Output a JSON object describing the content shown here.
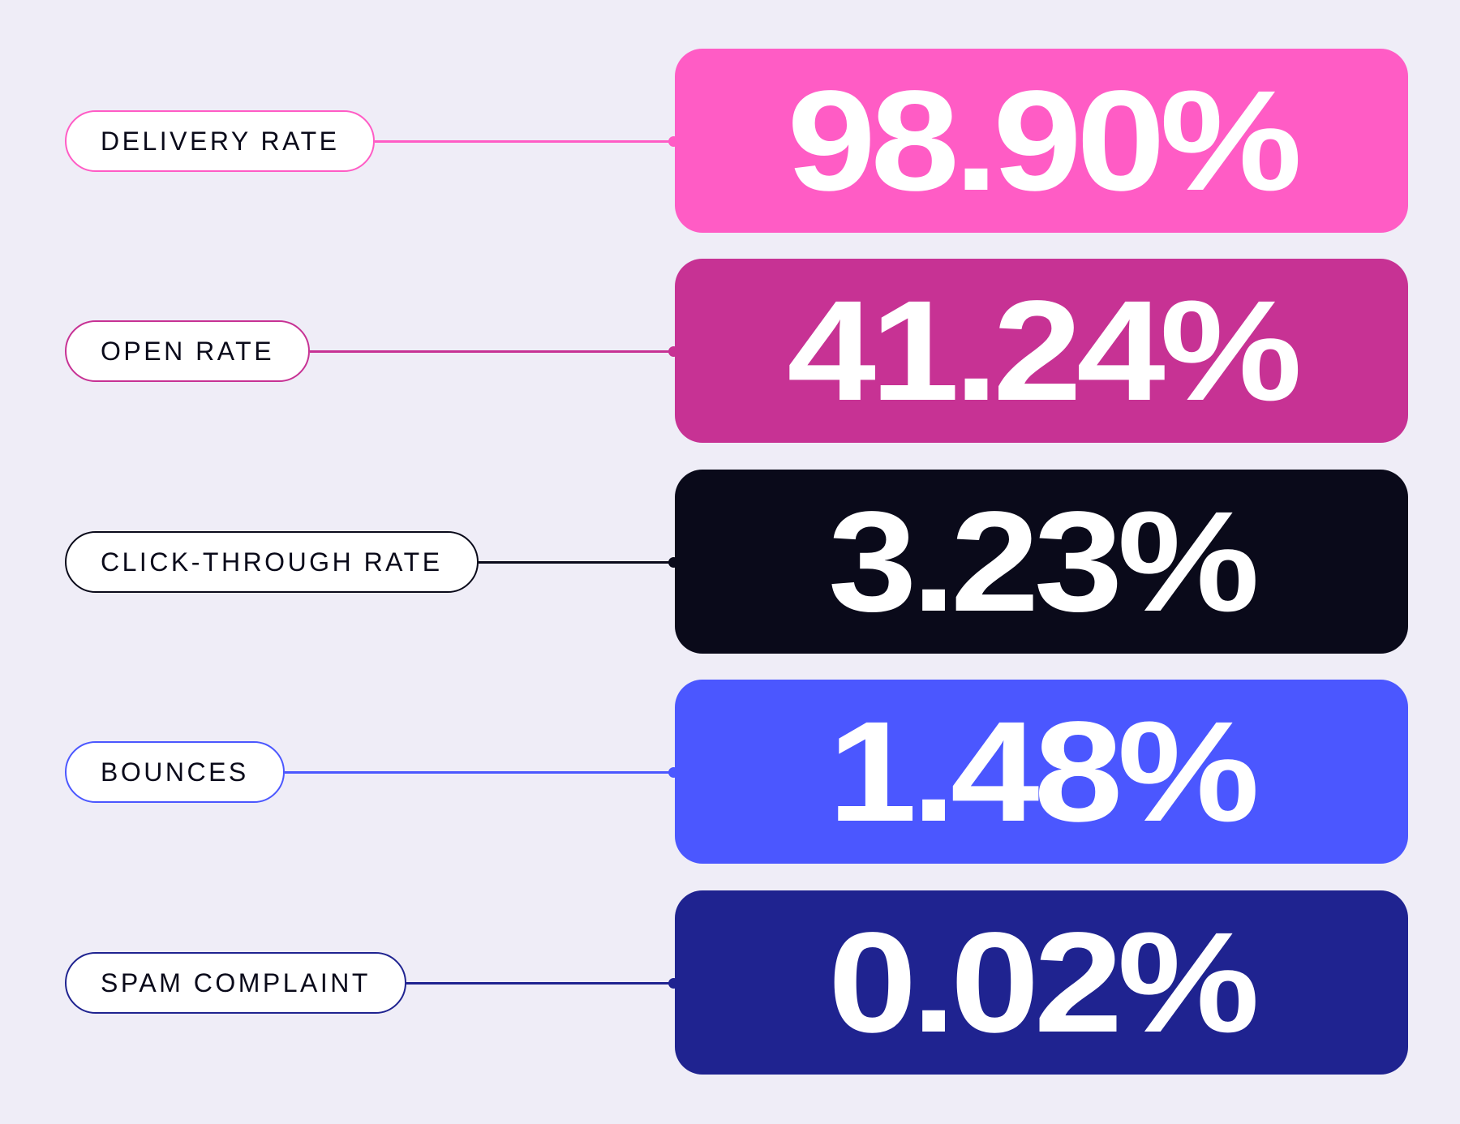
{
  "metrics": [
    {
      "label": "DELIVERY RATE",
      "value": "98.90%",
      "color": "#ff5cc5"
    },
    {
      "label": "OPEN RATE",
      "value": "41.24%",
      "color": "#c73294"
    },
    {
      "label": "CLICK-THROUGH RATE",
      "value": "3.23%",
      "color": "#0a0a1a"
    },
    {
      "label": "BOUNCES",
      "value": "1.48%",
      "color": "#4b57ff"
    },
    {
      "label": "SPAM COMPLAINT",
      "value": "0.02%",
      "color": "#1f2390"
    }
  ]
}
